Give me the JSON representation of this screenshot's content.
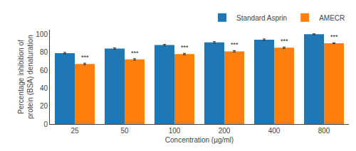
{
  "chart_data": {
    "type": "bar",
    "xlabel": "Concentration (µg/ml)",
    "ylabel": "Percentage inhibition of\nprotein (BSA) denaturation",
    "categories": [
      "25",
      "50",
      "100",
      "200",
      "400",
      "800"
    ],
    "series": [
      {
        "name": "Standard Asprin",
        "values": [
          79,
          84,
          88,
          91,
          94,
          100
        ],
        "errors": [
          0.8,
          0.8,
          0.8,
          0.8,
          0.8,
          0.5
        ]
      },
      {
        "name": "AMECR",
        "values": [
          67,
          72,
          78,
          81,
          85,
          90
        ],
        "errors": [
          0.8,
          0.8,
          0.8,
          0.8,
          0.8,
          0.5
        ]
      }
    ],
    "annotations": [
      {
        "category": "25",
        "series": "AMECR",
        "text": "***"
      },
      {
        "category": "50",
        "series": "AMECR",
        "text": "***"
      },
      {
        "category": "100",
        "series": "AMECR",
        "text": "***"
      },
      {
        "category": "200",
        "series": "AMECR",
        "text": "***"
      },
      {
        "category": "400",
        "series": "AMECR",
        "text": "***"
      },
      {
        "category": "800",
        "series": "AMECR",
        "text": "***"
      }
    ],
    "ylim": [
      0,
      105
    ],
    "yticks": [
      0,
      20,
      40,
      60,
      80,
      100
    ],
    "grid": false,
    "legend": "top right"
  }
}
